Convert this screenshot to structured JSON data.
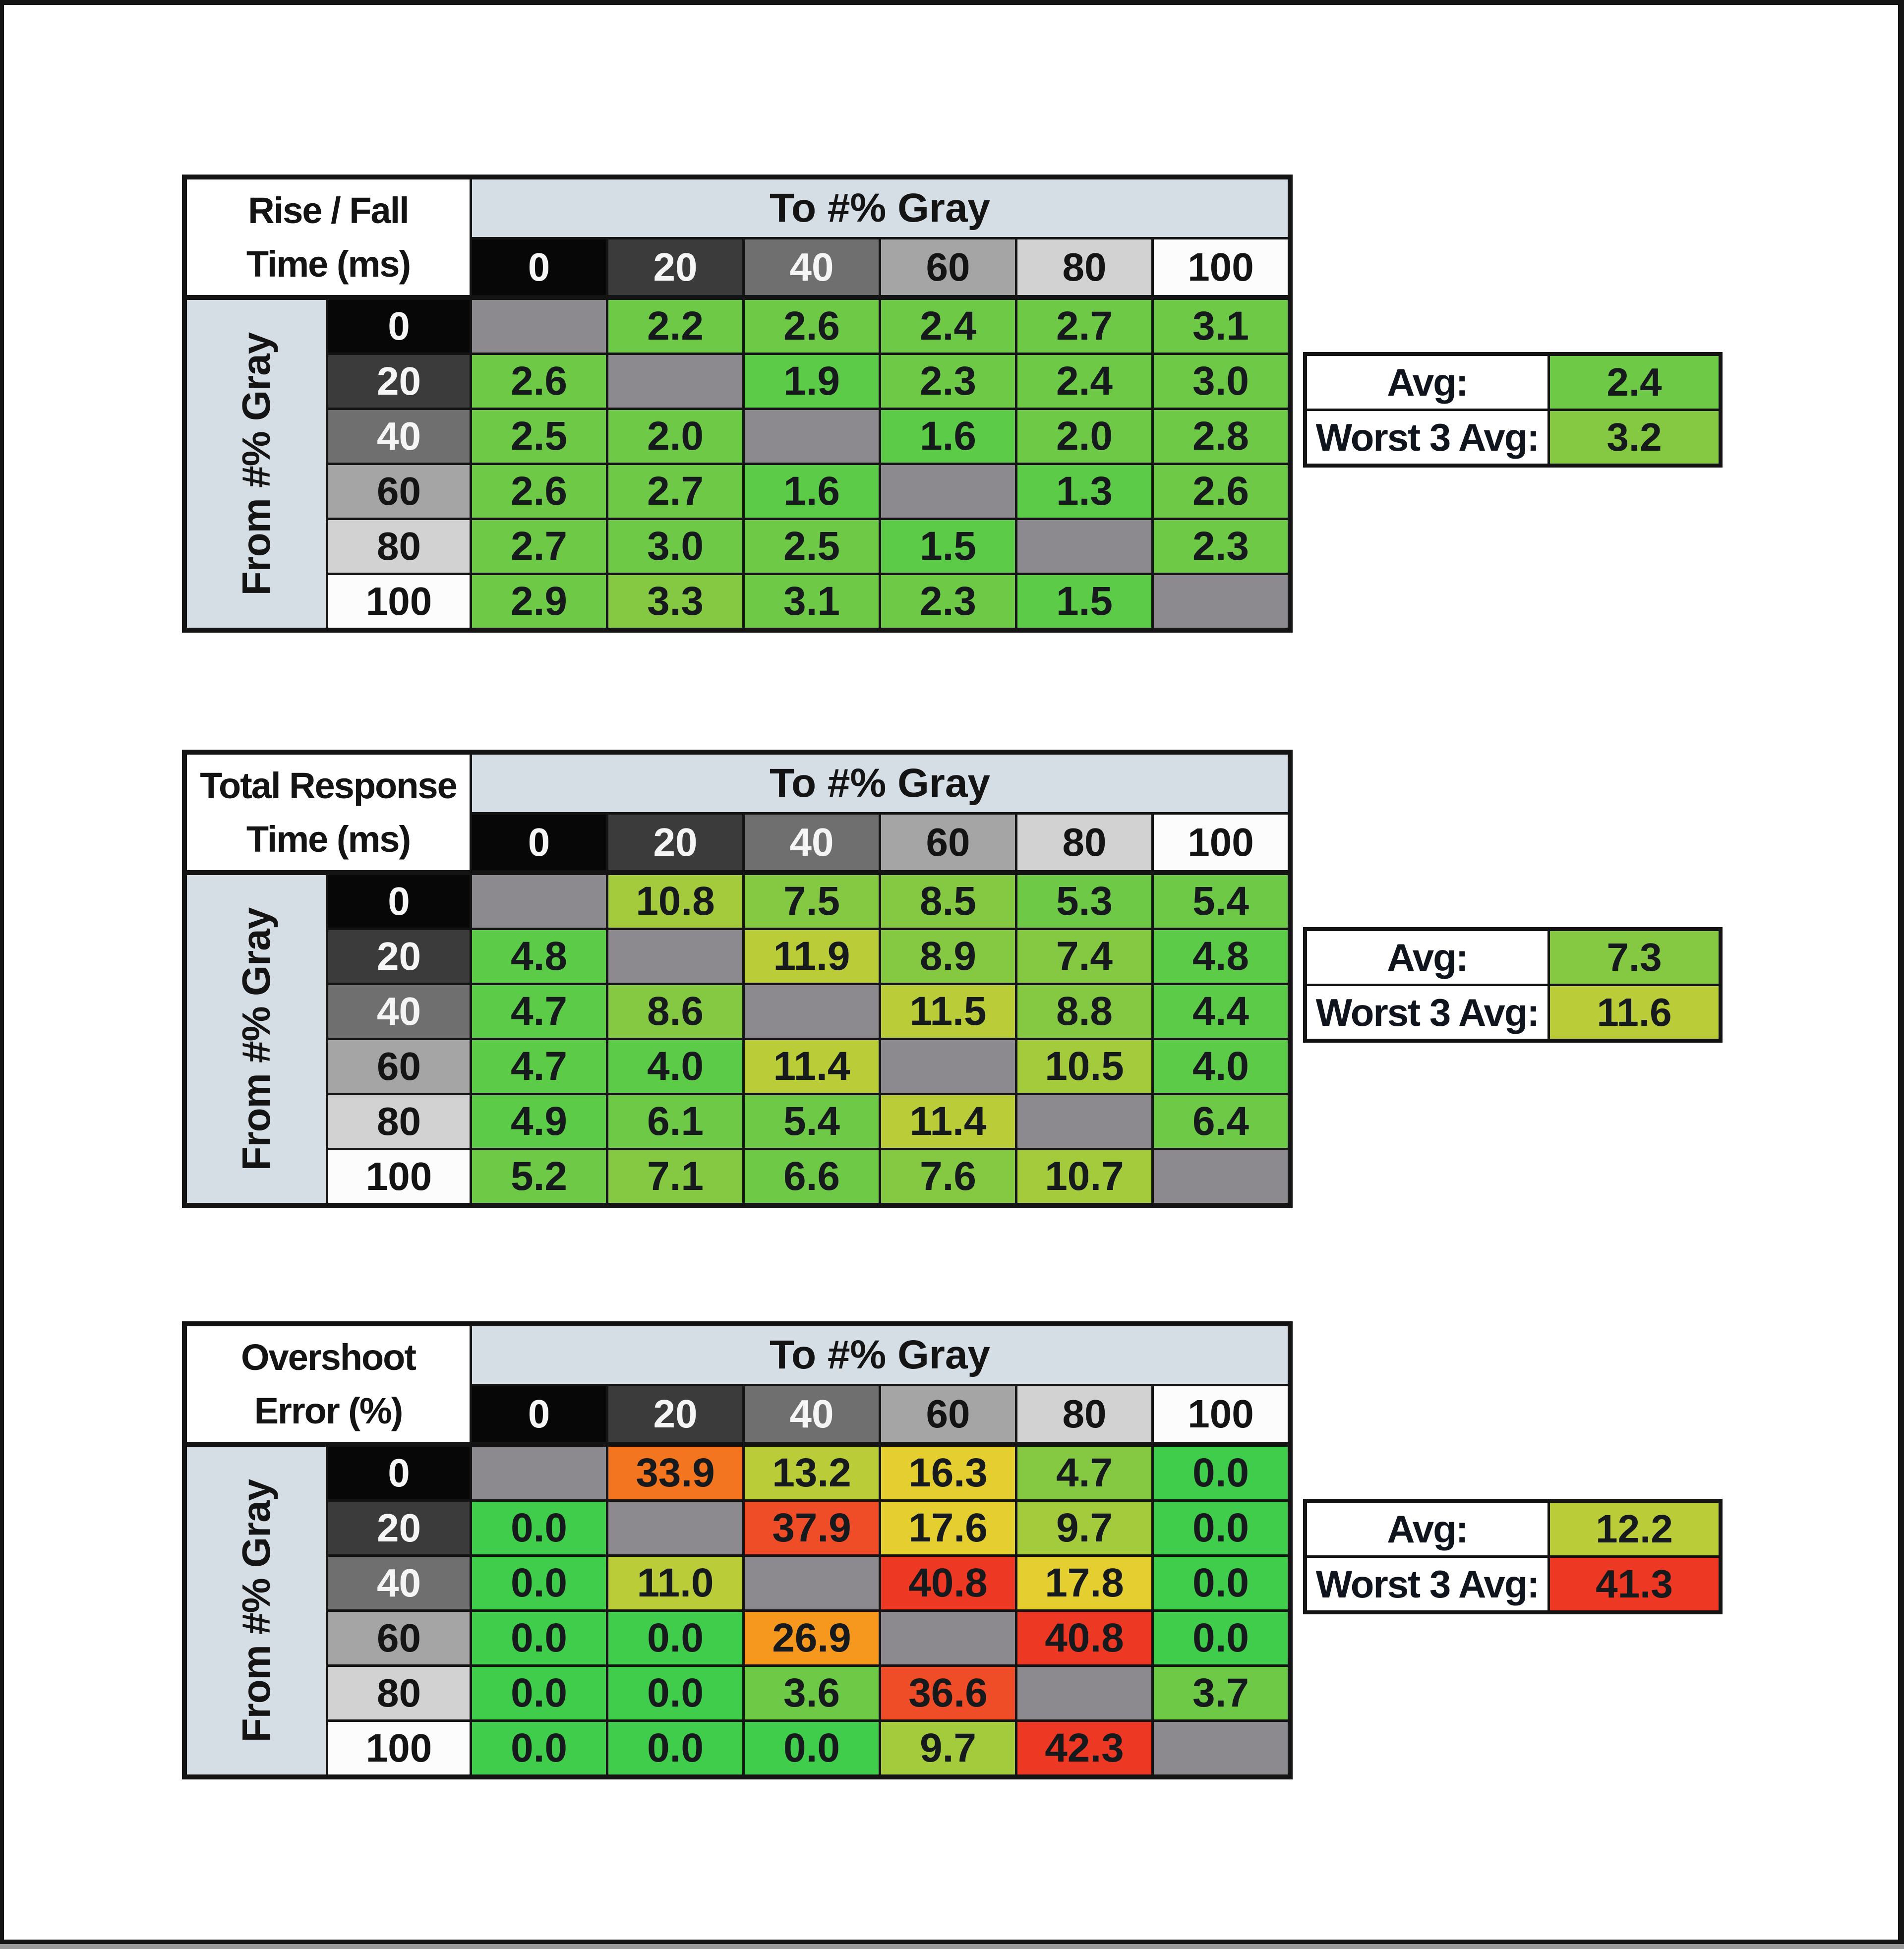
{
  "window": {
    "background": "#ffffff",
    "frame_color": "#151515",
    "bottom_strip_color": "#9b9b9b"
  },
  "shared": {
    "to_header": "To #% Gray",
    "from_header": "From #% Gray",
    "gray_levels": [
      "0",
      "20",
      "40",
      "60",
      "80",
      "100"
    ],
    "header_shades": [
      "#070707",
      "#3b3b3b",
      "#6f6f6f",
      "#a5a5a5",
      "#d2d2d2",
      "#fcfcfc"
    ],
    "header_text_colors": [
      "#f5f5f5",
      "#f5f5f5",
      "#f5f5f5",
      "#141414",
      "#141414",
      "#141414"
    ],
    "band_color": "#d6dee5",
    "diagonal_color": "#8c8a8e",
    "grid_color": "#141414",
    "avg_label": "Avg:",
    "worst_label": "Worst 3 Avg:"
  },
  "palette": {
    "g0": "#3fcd4b",
    "g1": "#5ccb47",
    "g2": "#6ec946",
    "g3": "#85c841",
    "g4": "#a4cb3c",
    "g5": "#bacc38",
    "y": "#e5cf30",
    "o1": "#f7981e",
    "o2": "#f4751f",
    "r1": "#ef4d27",
    "r2": "#ed3824"
  },
  "tables": [
    {
      "id": "rise-fall-time",
      "title1": "Rise / Fall",
      "title2": "Time (ms)",
      "rows": [
        [
          null,
          [
            "2.2",
            "g2"
          ],
          [
            "2.6",
            "g2"
          ],
          [
            "2.4",
            "g2"
          ],
          [
            "2.7",
            "g2"
          ],
          [
            "3.1",
            "g2"
          ]
        ],
        [
          [
            "2.6",
            "g2"
          ],
          null,
          [
            "1.9",
            "g1"
          ],
          [
            "2.3",
            "g2"
          ],
          [
            "2.4",
            "g2"
          ],
          [
            "3.0",
            "g2"
          ]
        ],
        [
          [
            "2.5",
            "g2"
          ],
          [
            "2.0",
            "g2"
          ],
          null,
          [
            "1.6",
            "g1"
          ],
          [
            "2.0",
            "g2"
          ],
          [
            "2.8",
            "g2"
          ]
        ],
        [
          [
            "2.6",
            "g2"
          ],
          [
            "2.7",
            "g2"
          ],
          [
            "1.6",
            "g1"
          ],
          null,
          [
            "1.3",
            "g1"
          ],
          [
            "2.6",
            "g2"
          ]
        ],
        [
          [
            "2.7",
            "g2"
          ],
          [
            "3.0",
            "g2"
          ],
          [
            "2.5",
            "g2"
          ],
          [
            "1.5",
            "g1"
          ],
          null,
          [
            "2.3",
            "g2"
          ]
        ],
        [
          [
            "2.9",
            "g2"
          ],
          [
            "3.3",
            "g3"
          ],
          [
            "3.1",
            "g2"
          ],
          [
            "2.3",
            "g2"
          ],
          [
            "1.5",
            "g1"
          ],
          null
        ]
      ],
      "avg": [
        "2.4",
        "g2"
      ],
      "worst": [
        "3.2",
        "g3"
      ]
    },
    {
      "id": "total-response-time",
      "title1": "Total Response",
      "title2": "Time (ms)",
      "rows": [
        [
          null,
          [
            "10.8",
            "g4"
          ],
          [
            "7.5",
            "g3"
          ],
          [
            "8.5",
            "g3"
          ],
          [
            "5.3",
            "g2"
          ],
          [
            "5.4",
            "g2"
          ]
        ],
        [
          [
            "4.8",
            "g1"
          ],
          null,
          [
            "11.9",
            "g5"
          ],
          [
            "8.9",
            "g3"
          ],
          [
            "7.4",
            "g3"
          ],
          [
            "4.8",
            "g1"
          ]
        ],
        [
          [
            "4.7",
            "g1"
          ],
          [
            "8.6",
            "g3"
          ],
          null,
          [
            "11.5",
            "g5"
          ],
          [
            "8.8",
            "g3"
          ],
          [
            "4.4",
            "g1"
          ]
        ],
        [
          [
            "4.7",
            "g1"
          ],
          [
            "4.0",
            "g1"
          ],
          [
            "11.4",
            "g5"
          ],
          null,
          [
            "10.5",
            "g4"
          ],
          [
            "4.0",
            "g1"
          ]
        ],
        [
          [
            "4.9",
            "g1"
          ],
          [
            "6.1",
            "g2"
          ],
          [
            "5.4",
            "g2"
          ],
          [
            "11.4",
            "g5"
          ],
          null,
          [
            "6.4",
            "g2"
          ]
        ],
        [
          [
            "5.2",
            "g2"
          ],
          [
            "7.1",
            "g3"
          ],
          [
            "6.6",
            "g2"
          ],
          [
            "7.6",
            "g3"
          ],
          [
            "10.7",
            "g4"
          ],
          null
        ]
      ],
      "avg": [
        "7.3",
        "g3"
      ],
      "worst": [
        "11.6",
        "g5"
      ]
    },
    {
      "id": "overshoot-error",
      "title1": "Overshoot",
      "title2": "Error (%)",
      "rows": [
        [
          null,
          [
            "33.9",
            "o2"
          ],
          [
            "13.2",
            "g5"
          ],
          [
            "16.3",
            "y"
          ],
          [
            "4.7",
            "g3"
          ],
          [
            "0.0",
            "g0"
          ]
        ],
        [
          [
            "0.0",
            "g0"
          ],
          null,
          [
            "37.9",
            "r1"
          ],
          [
            "17.6",
            "y"
          ],
          [
            "9.7",
            "g4"
          ],
          [
            "0.0",
            "g0"
          ]
        ],
        [
          [
            "0.0",
            "g0"
          ],
          [
            "11.0",
            "g5"
          ],
          null,
          [
            "40.8",
            "r2"
          ],
          [
            "17.8",
            "y"
          ],
          [
            "0.0",
            "g0"
          ]
        ],
        [
          [
            "0.0",
            "g0"
          ],
          [
            "0.0",
            "g0"
          ],
          [
            "26.9",
            "o1"
          ],
          null,
          [
            "40.8",
            "r2"
          ],
          [
            "0.0",
            "g0"
          ]
        ],
        [
          [
            "0.0",
            "g0"
          ],
          [
            "0.0",
            "g0"
          ],
          [
            "3.6",
            "g2"
          ],
          [
            "36.6",
            "r1"
          ],
          null,
          [
            "3.7",
            "g2"
          ]
        ],
        [
          [
            "0.0",
            "g0"
          ],
          [
            "0.0",
            "g0"
          ],
          [
            "0.0",
            "g0"
          ],
          [
            "9.7",
            "g4"
          ],
          [
            "42.3",
            "r2"
          ],
          null
        ]
      ],
      "avg": [
        "12.2",
        "g5"
      ],
      "worst": [
        "41.3",
        "r2"
      ]
    }
  ]
}
